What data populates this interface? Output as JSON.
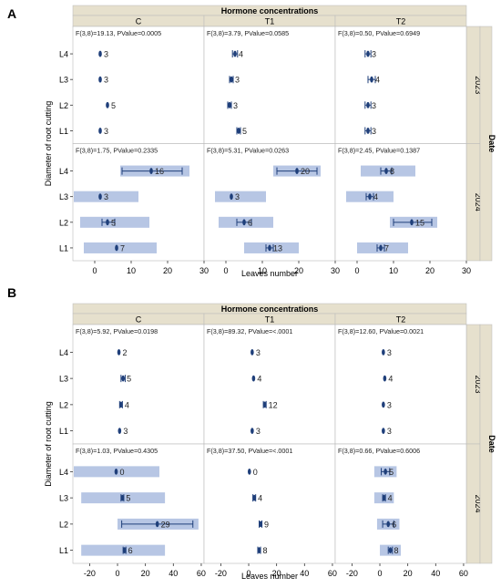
{
  "figure": {
    "panels": [
      {
        "letter": "A",
        "header": "Hormone concentrations",
        "columns": [
          "C",
          "T1",
          "T2"
        ],
        "row_strip_label": "Date",
        "years": [
          "2023",
          "2024"
        ],
        "y_axis_title": "Diameter of root cutting",
        "x_axis_title": "Leaves number",
        "levels": [
          "L4",
          "L3",
          "L2",
          "L1"
        ],
        "x_ticks": [
          "0",
          "10",
          "20",
          "30"
        ],
        "xlim": [
          -6,
          30
        ]
      },
      {
        "letter": "B",
        "header": "Hormone concentrations",
        "columns": [
          "C",
          "T1",
          "T2"
        ],
        "row_strip_label": "Date",
        "years": [
          "2023",
          "2024"
        ],
        "y_axis_title": "Diameter of root cutting",
        "x_axis_title": "Leaves number",
        "levels": [
          "L4",
          "L3",
          "L2",
          "L1"
        ],
        "x_ticks": [
          "-20",
          "0",
          "20",
          "40",
          "60"
        ],
        "xlim": [
          -32,
          62
        ]
      }
    ]
  },
  "chart_data": [
    {
      "type": "interval",
      "title": "A",
      "xlabel": "Leaves number",
      "ylabel": "Diameter of root cutting",
      "xlim": [
        -6,
        30
      ],
      "cells": [
        {
          "year": "2023",
          "column": "C",
          "stat": "F(3,8)=19.13, PValue=0.0005",
          "points": [
            {
              "level": "L4",
              "mean": 1.5,
              "label": "3",
              "lo": 1.2,
              "hi": 1.8
            },
            {
              "level": "L3",
              "mean": 1.5,
              "label": "3",
              "lo": 1.2,
              "hi": 1.8
            },
            {
              "level": "L2",
              "mean": 3.5,
              "label": "5",
              "lo": 3.2,
              "hi": 3.8
            },
            {
              "level": "L1",
              "mean": 1.5,
              "label": "3",
              "lo": 1.2,
              "hi": 1.8
            }
          ]
        },
        {
          "year": "2023",
          "column": "T1",
          "stat": "F(3,8)=3.79, PValue=0.0585",
          "points": [
            {
              "level": "L4",
              "mean": 2.5,
              "label": "4",
              "lo": 1.8,
              "hi": 3.2
            },
            {
              "level": "L3",
              "mean": 1.5,
              "label": "3",
              "lo": 1.0,
              "hi": 2.0
            },
            {
              "level": "L2",
              "mean": 1.0,
              "label": "3",
              "lo": 0.5,
              "hi": 1.5
            },
            {
              "level": "L1",
              "mean": 3.5,
              "label": "5",
              "lo": 3.0,
              "hi": 4.0
            }
          ]
        },
        {
          "year": "2023",
          "column": "T2",
          "stat": "F(3,8)=0.50, PValue=0.6949",
          "points": [
            {
              "level": "L4",
              "mean": 3.0,
              "label": "3",
              "lo": 2.2,
              "hi": 3.8
            },
            {
              "level": "L3",
              "mean": 4.0,
              "label": "4",
              "lo": 3.0,
              "hi": 5.0
            },
            {
              "level": "L2",
              "mean": 3.0,
              "label": "3",
              "lo": 2.2,
              "hi": 3.8
            },
            {
              "level": "L1",
              "mean": 3.0,
              "label": "3",
              "lo": 2.2,
              "hi": 3.8
            }
          ]
        },
        {
          "year": "2024",
          "column": "C",
          "stat": "F(3,8)=1.75, PValue=0.2335",
          "points": [
            {
              "level": "L4",
              "mean": 15.5,
              "label": "16",
              "lo": 7.5,
              "hi": 24.0,
              "band": [
                7,
                26
              ]
            },
            {
              "level": "L3",
              "mean": 1.5,
              "label": "3",
              "lo": 1.2,
              "hi": 1.8,
              "band": [
                -6,
                12
              ]
            },
            {
              "level": "L2",
              "mean": 3.5,
              "label": "5",
              "lo": 2.0,
              "hi": 5.5,
              "band": [
                -4,
                15
              ]
            },
            {
              "level": "L1",
              "mean": 6.0,
              "label": "7",
              "lo": 5.7,
              "hi": 6.3,
              "band": [
                -3,
                17
              ]
            }
          ]
        },
        {
          "year": "2024",
          "column": "T1",
          "stat": "F(3,8)=5.31, PValue=0.0263",
          "points": [
            {
              "level": "L4",
              "mean": 19.5,
              "label": "20",
              "lo": 14.0,
              "hi": 25.0,
              "band": [
                13,
                26
              ]
            },
            {
              "level": "L3",
              "mean": 1.5,
              "label": "3",
              "lo": 1.2,
              "hi": 1.8,
              "band": [
                -3,
                11
              ]
            },
            {
              "level": "L2",
              "mean": 5.0,
              "label": "6",
              "lo": 3.0,
              "hi": 7.0,
              "band": [
                -2,
                13
              ]
            },
            {
              "level": "L1",
              "mean": 12.0,
              "label": "13",
              "lo": 11.0,
              "hi": 13.0,
              "band": [
                5,
                20
              ]
            }
          ]
        },
        {
          "year": "2024",
          "column": "T2",
          "stat": "F(3,8)=2.45, PValue=0.1387",
          "points": [
            {
              "level": "L4",
              "mean": 8.0,
              "label": "8",
              "lo": 6.5,
              "hi": 9.5,
              "band": [
                1,
                16
              ]
            },
            {
              "level": "L3",
              "mean": 3.5,
              "label": "4",
              "lo": 2.5,
              "hi": 4.5,
              "band": [
                -3,
                10
              ]
            },
            {
              "level": "L2",
              "mean": 15.0,
              "label": "15",
              "lo": 10.0,
              "hi": 20.5,
              "band": [
                9,
                22
              ]
            },
            {
              "level": "L1",
              "mean": 6.5,
              "label": "7",
              "lo": 5.5,
              "hi": 7.5,
              "band": [
                0,
                14
              ]
            }
          ]
        }
      ]
    },
    {
      "type": "interval",
      "title": "B",
      "xlabel": "Leaves number",
      "ylabel": "Diameter of root cutting",
      "xlim": [
        -32,
        62
      ],
      "cells": [
        {
          "year": "2023",
          "column": "C",
          "stat": "F(3,8)=5.92, PValue=0.0198",
          "points": [
            {
              "level": "L4",
              "mean": 1.0,
              "label": "2",
              "lo": 0.5,
              "hi": 1.5
            },
            {
              "level": "L3",
              "mean": 4.0,
              "label": "5",
              "lo": 2.5,
              "hi": 5.5
            },
            {
              "level": "L2",
              "mean": 2.5,
              "label": "4",
              "lo": 1.5,
              "hi": 3.5
            },
            {
              "level": "L1",
              "mean": 1.5,
              "label": "3",
              "lo": 0.8,
              "hi": 2.2
            }
          ]
        },
        {
          "year": "2023",
          "column": "T1",
          "stat": "F(3,8)=89.32, PValue=<.0001",
          "points": [
            {
              "level": "L4",
              "mean": 2.5,
              "label": "3",
              "lo": 1.8,
              "hi": 3.2
            },
            {
              "level": "L3",
              "mean": 3.5,
              "label": "4",
              "lo": 2.8,
              "hi": 4.2
            },
            {
              "level": "L2",
              "mean": 11.5,
              "label": "12",
              "lo": 10.5,
              "hi": 12.5
            },
            {
              "level": "L1",
              "mean": 2.5,
              "label": "3",
              "lo": 1.8,
              "hi": 3.2
            }
          ]
        },
        {
          "year": "2023",
          "column": "T2",
          "stat": "F(3,8)=12.60, PValue=0.0021",
          "points": [
            {
              "level": "L4",
              "mean": 2.5,
              "label": "3",
              "lo": 1.8,
              "hi": 3.2
            },
            {
              "level": "L3",
              "mean": 3.5,
              "label": "4",
              "lo": 2.8,
              "hi": 4.2
            },
            {
              "level": "L2",
              "mean": 2.5,
              "label": "3",
              "lo": 1.8,
              "hi": 3.2
            },
            {
              "level": "L1",
              "mean": 2.5,
              "label": "3",
              "lo": 1.8,
              "hi": 3.2
            }
          ]
        },
        {
          "year": "2024",
          "column": "C",
          "stat": "F(3,8)=1.03, PValue=0.4305",
          "points": [
            {
              "level": "L4",
              "mean": -1.0,
              "label": "0",
              "lo": -1.5,
              "hi": -0.5,
              "band": [
                -32,
                30
              ]
            },
            {
              "level": "L3",
              "mean": 3.5,
              "label": "5",
              "lo": 2.5,
              "hi": 4.5,
              "band": [
                -26,
                34
              ]
            },
            {
              "level": "L2",
              "mean": 28.5,
              "label": "29",
              "lo": 3.0,
              "hi": 54.0,
              "band": [
                0,
                58
              ]
            },
            {
              "level": "L1",
              "mean": 5.0,
              "label": "6",
              "lo": 4.0,
              "hi": 6.0,
              "band": [
                -26,
                34
              ]
            }
          ]
        },
        {
          "year": "2024",
          "column": "T1",
          "stat": "F(3,8)=37.50, PValue=<.0001",
          "points": [
            {
              "level": "L4",
              "mean": 0.5,
              "label": "0",
              "lo": 0.0,
              "hi": 1.0
            },
            {
              "level": "L3",
              "mean": 4.0,
              "label": "4",
              "lo": 3.0,
              "hi": 5.0
            },
            {
              "level": "L2",
              "mean": 8.5,
              "label": "9",
              "lo": 7.5,
              "hi": 9.5
            },
            {
              "level": "L1",
              "mean": 7.5,
              "label": "8",
              "lo": 6.5,
              "hi": 8.5
            }
          ]
        },
        {
          "year": "2024",
          "column": "T2",
          "stat": "F(3,8)=0.66, PValue=0.6006",
          "points": [
            {
              "level": "L4",
              "mean": 4.0,
              "label": "5",
              "lo": 1.0,
              "hi": 7.0,
              "band": [
                -4,
                12
              ]
            },
            {
              "level": "L3",
              "mean": 3.0,
              "label": "4",
              "lo": 2.0,
              "hi": 4.0,
              "band": [
                -4,
                10
              ]
            },
            {
              "level": "L2",
              "mean": 6.0,
              "label": "6",
              "lo": 2.0,
              "hi": 10.0,
              "band": [
                -2,
                14
              ]
            },
            {
              "level": "L1",
              "mean": 7.5,
              "label": "8",
              "lo": 6.0,
              "hi": 9.0,
              "band": [
                0,
                15
              ]
            }
          ]
        }
      ]
    }
  ]
}
